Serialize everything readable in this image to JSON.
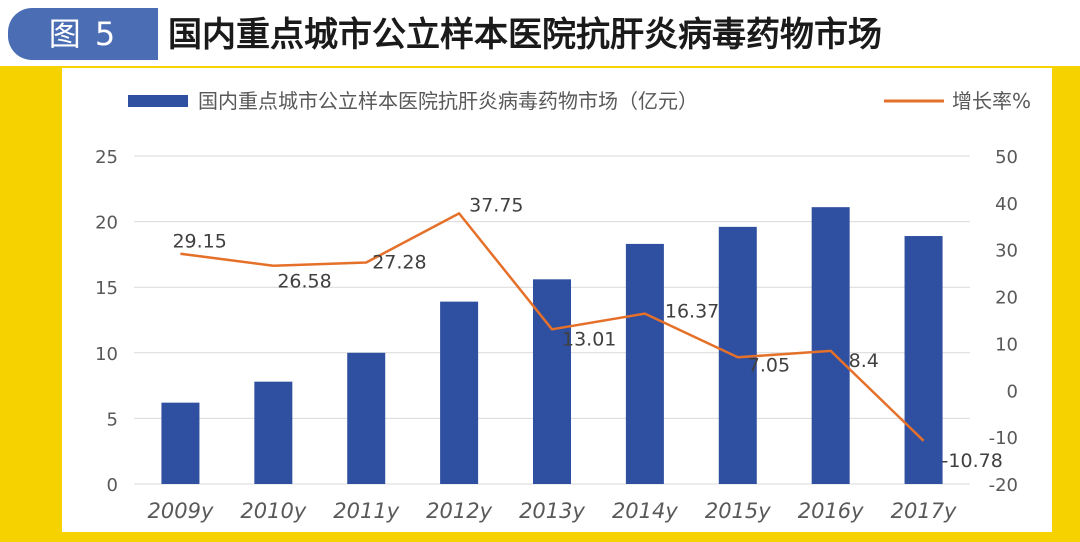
{
  "figure": {
    "badge": "图 5",
    "title": "国内重点城市公立样本医院抗肝炎病毒药物市场"
  },
  "colors": {
    "frame": "#f6d300",
    "badge": "#4a6db3",
    "bar": "#2f4fa0",
    "line": "#e5702a",
    "grid": "#d9d9d9",
    "text": "#595959"
  },
  "chart_data": {
    "type": "bar",
    "categories": [
      "2009y",
      "2010y",
      "2011y",
      "2012y",
      "2013y",
      "2014y",
      "2015y",
      "2016y",
      "2017y"
    ],
    "series": [
      {
        "name": "国内重点城市公立样本医院抗肝炎病毒药物市场（亿元）",
        "type": "bar",
        "axis": "left",
        "values": [
          6.2,
          7.8,
          10.0,
          13.9,
          15.6,
          18.3,
          19.6,
          21.1,
          18.9
        ]
      },
      {
        "name": "增长率%",
        "type": "line",
        "axis": "right",
        "values": [
          29.15,
          26.58,
          27.28,
          37.75,
          13.01,
          16.37,
          7.05,
          8.4,
          -10.78
        ]
      }
    ],
    "data_labels": [
      "29.15",
      "26.58",
      "27.28",
      "37.75",
      "13.01",
      "16.37",
      "7.05",
      "8.4",
      "-10.78"
    ],
    "y_left": {
      "ticks": [
        "0",
        "5",
        "10",
        "15",
        "20",
        "25"
      ],
      "range": [
        0,
        25
      ]
    },
    "y_right": {
      "ticks": [
        "-20",
        "-10",
        "0",
        "10",
        "20",
        "30",
        "40",
        "50"
      ],
      "range": [
        -20,
        50
      ]
    },
    "grid": true,
    "legend_position": "top"
  }
}
